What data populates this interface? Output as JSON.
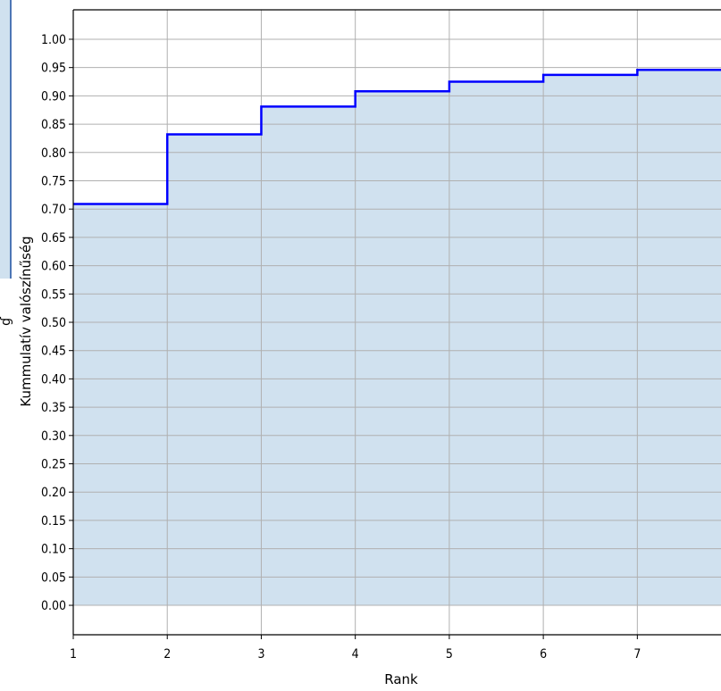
{
  "chart_data": {
    "type": "line",
    "subtype": "step",
    "title": "",
    "xlabel": "Rank",
    "ylabel": "Kummulatív valószínűség",
    "x": [
      1,
      2,
      3,
      4,
      5,
      6,
      7,
      8
    ],
    "series": [
      {
        "values": [
          0.709,
          0.832,
          0.881,
          0.908,
          0.925,
          0.937,
          0.946,
          0.946
        ]
      }
    ],
    "fill_under": true,
    "xticks": [
      "1",
      "2",
      "3",
      "4",
      "5",
      "6",
      "7"
    ],
    "yticks": [
      "0.00",
      "0.05",
      "0.10",
      "0.15",
      "0.20",
      "0.25",
      "0.30",
      "0.35",
      "0.40",
      "0.45",
      "0.50",
      "0.55",
      "0.60",
      "0.65",
      "0.70",
      "0.75",
      "0.80",
      "0.85",
      "0.90",
      "0.95",
      "1.00"
    ],
    "xlim": [
      1,
      7.89
    ],
    "ylim": [
      -0.052,
      1.052
    ],
    "grid": true,
    "colors": {
      "line": "#0000ff",
      "fill": "#d0e1ef",
      "grid": "#b0b0b0"
    }
  }
}
